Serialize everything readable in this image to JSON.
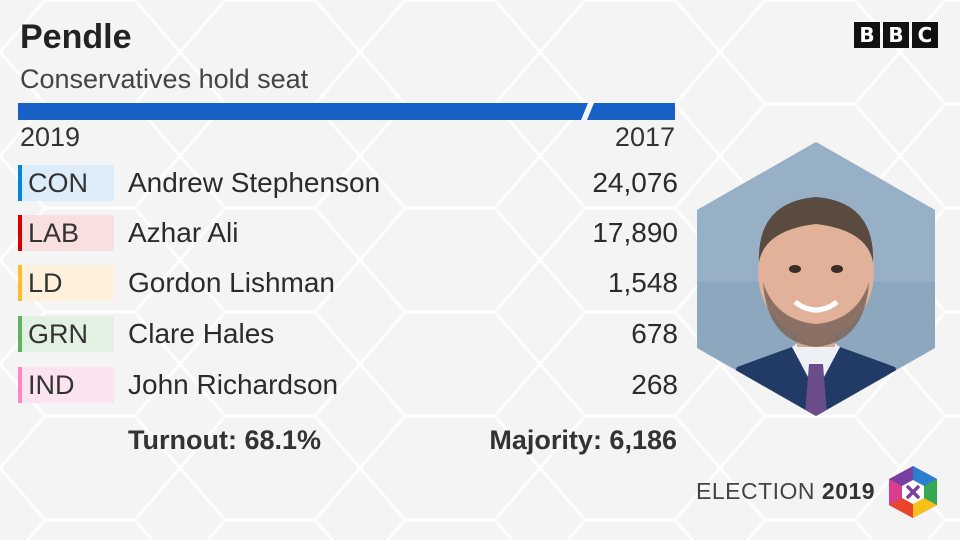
{
  "header": {
    "constituency": "Pendle",
    "result": "Conservatives hold seat",
    "brand_letters": [
      "B",
      "B",
      "C"
    ]
  },
  "years": {
    "current": "2019",
    "previous": "2017"
  },
  "candidates": [
    {
      "party": "CON",
      "name": "Andrew Stephenson",
      "votes": "24,076",
      "color": "#0087dc",
      "tint": "#dcecf9"
    },
    {
      "party": "LAB",
      "name": "Azhar Ali",
      "votes": "17,890",
      "color": "#d50000",
      "tint": "#f9e0e0"
    },
    {
      "party": "LD",
      "name": "Gordon Lishman",
      "votes": "1,548",
      "color": "#fdbb30",
      "tint": "#fdf1dc"
    },
    {
      "party": "GRN",
      "name": "Clare Hales",
      "votes": "678",
      "color": "#5fb25f",
      "tint": "#e3f1e3"
    },
    {
      "party": "IND",
      "name": "John Richardson",
      "votes": "268",
      "color": "#fc86c2",
      "tint": "#fbe3ef"
    }
  ],
  "summary": {
    "turnout": "Turnout: 68.1%",
    "majority": "Majority: 6,186"
  },
  "footer": {
    "label": "ELECTION",
    "year": "2019"
  },
  "colors": {
    "bar": "#1760c6",
    "background": "#f4f4f4",
    "photo_bg": "#8da7bf",
    "suit": "#223a66"
  }
}
